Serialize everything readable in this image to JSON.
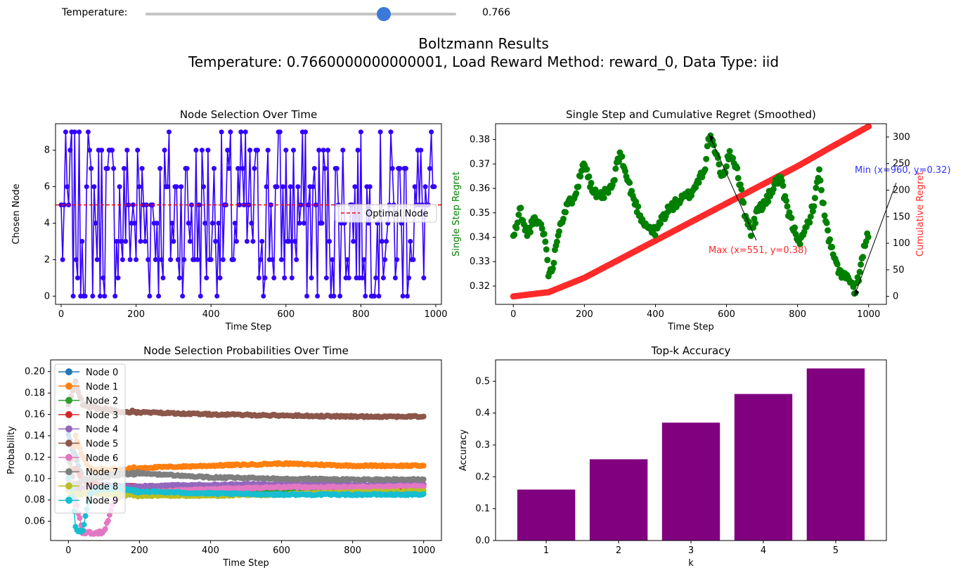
{
  "slider": {
    "label": "Temperature:",
    "value": 0.766,
    "value_text": "0.766",
    "min": 0,
    "max": 1
  },
  "figure": {
    "title_line1": "Boltzmann Results",
    "title_line2": "Temperature: 0.7660000000000001, Load Reward Method: reward_0, Data Type: iid"
  },
  "colors": {
    "selection": "#3300ff",
    "optimal": "#ff0000",
    "single_regret": "#008000",
    "cumulative_regret": "#ff2a2a",
    "bars": "#800080",
    "nodes": [
      "#1f77b4",
      "#ff7f0e",
      "#2ca02c",
      "#d62728",
      "#9467bd",
      "#8c564b",
      "#e377c2",
      "#7f7f7f",
      "#bcbd22",
      "#17becf"
    ]
  },
  "chart_data": [
    {
      "type": "line",
      "title": "Node Selection Over Time",
      "xlabel": "Time Step",
      "ylabel": "Chosen Node",
      "xlim": [
        -15,
        1015
      ],
      "ylim": [
        -0.45,
        9.45
      ],
      "xticks": [
        0,
        200,
        400,
        600,
        800,
        1000
      ],
      "yticks": [
        0,
        2,
        4,
        6,
        8
      ],
      "n_steps": 1000,
      "value_range": [
        0,
        9
      ],
      "optimal_node": 5,
      "series": [
        {
          "name": "Optimal Node",
          "values": [
            5,
            5
          ]
        }
      ],
      "legend_position": "center-right",
      "note": "Per-step chosen node values (0-9) over 1000 steps, too dense to read individually"
    },
    {
      "type": "line",
      "title": "Single Step and Cumulative Regret (Smoothed)",
      "xlabel": "Time Step",
      "ylabel": "Single Step Regret",
      "ylabel_right": "Cumulative Regret",
      "xlim": [
        -50,
        1050
      ],
      "ylim": [
        0.3125,
        0.3865
      ],
      "ylim_right": [
        -15,
        325
      ],
      "xticks": [
        0,
        200,
        400,
        600,
        800,
        1000
      ],
      "yticks": [
        0.32,
        0.33,
        0.34,
        0.35,
        0.36,
        0.37,
        0.38
      ],
      "yticks_right": [
        0,
        50,
        100,
        150,
        200,
        250,
        300
      ],
      "series": [
        {
          "name": "Single Step Regret",
          "x": [
            0,
            10,
            20,
            30,
            40,
            60,
            80,
            95,
            100,
            110,
            130,
            150,
            170,
            185,
            200,
            220,
            240,
            260,
            280,
            300,
            320,
            340,
            360,
            380,
            400,
            420,
            440,
            460,
            480,
            500,
            520,
            540,
            551,
            570,
            590,
            610,
            630,
            650,
            670,
            690,
            710,
            730,
            750,
            770,
            790,
            810,
            830,
            850,
            860,
            875,
            890,
            910,
            930,
            950,
            960,
            975,
            990,
            1000
          ],
          "values": [
            0.34,
            0.345,
            0.352,
            0.344,
            0.342,
            0.347,
            0.345,
            0.335,
            0.323,
            0.328,
            0.345,
            0.352,
            0.357,
            0.363,
            0.372,
            0.36,
            0.356,
            0.358,
            0.361,
            0.375,
            0.364,
            0.355,
            0.348,
            0.344,
            0.342,
            0.348,
            0.352,
            0.354,
            0.356,
            0.358,
            0.363,
            0.369,
            0.382,
            0.374,
            0.364,
            0.375,
            0.368,
            0.351,
            0.342,
            0.352,
            0.354,
            0.36,
            0.365,
            0.352,
            0.343,
            0.338,
            0.346,
            0.356,
            0.368,
            0.35,
            0.338,
            0.328,
            0.324,
            0.322,
            0.316,
            0.326,
            0.337,
            0.342
          ]
        },
        {
          "name": "Cumulative Regret",
          "x": [
            0,
            100,
            200,
            300,
            400,
            500,
            600,
            700,
            800,
            900,
            1000
          ],
          "values": [
            0,
            8,
            35,
            70,
            105,
            140,
            175,
            210,
            245,
            283,
            320
          ]
        }
      ],
      "annotations": [
        {
          "text": "Max (x=551, y=0.38)",
          "x": 551,
          "y": 0.382
        },
        {
          "text": "Min (x=960, y=0.32)",
          "x": 960,
          "y": 0.316
        }
      ]
    },
    {
      "type": "line",
      "title": "Node Selection Probabilities Over Time",
      "xlabel": "Time Step",
      "ylabel": "Probability",
      "xlim": [
        -50,
        1050
      ],
      "ylim": [
        0.042,
        0.211
      ],
      "xticks": [
        0,
        200,
        400,
        600,
        800,
        1000
      ],
      "yticks": [
        0.06,
        0.08,
        0.1,
        0.12,
        0.14,
        0.16,
        0.18,
        0.2
      ],
      "legend_position": "upper-left",
      "series": [
        {
          "name": "Node 0",
          "x": [
            0,
            20,
            40,
            60,
            100,
            150,
            200,
            400,
            600,
            800,
            1000
          ],
          "values": [
            0.14,
            0.12,
            0.1,
            0.095,
            0.093,
            0.092,
            0.091,
            0.092,
            0.093,
            0.093,
            0.094
          ]
        },
        {
          "name": "Node 1",
          "x": [
            0,
            20,
            40,
            60,
            100,
            150,
            200,
            400,
            600,
            800,
            1000
          ],
          "values": [
            0.09,
            0.14,
            0.12,
            0.11,
            0.108,
            0.108,
            0.11,
            0.112,
            0.114,
            0.112,
            0.112
          ]
        },
        {
          "name": "Node 2",
          "x": [
            0,
            20,
            40,
            60,
            100,
            150,
            200,
            400,
            600,
            800,
            1000
          ],
          "values": [
            0.08,
            0.085,
            0.09,
            0.09,
            0.088,
            0.087,
            0.085,
            0.086,
            0.088,
            0.089,
            0.089
          ]
        },
        {
          "name": "Node 3",
          "x": [
            0,
            20,
            40,
            60,
            100,
            150,
            200,
            400,
            600,
            800,
            1000
          ],
          "values": [
            0.1,
            0.11,
            0.1,
            0.095,
            0.093,
            0.092,
            0.092,
            0.093,
            0.093,
            0.092,
            0.092
          ]
        },
        {
          "name": "Node 4",
          "x": [
            0,
            20,
            40,
            60,
            100,
            150,
            200,
            400,
            600,
            800,
            1000
          ],
          "values": [
            0.09,
            0.095,
            0.09,
            0.09,
            0.091,
            0.092,
            0.093,
            0.094,
            0.095,
            0.094,
            0.094
          ]
        },
        {
          "name": "Node 5",
          "x": [
            0,
            20,
            40,
            60,
            100,
            150,
            200,
            400,
            600,
            800,
            1000
          ],
          "values": [
            0.17,
            0.19,
            0.17,
            0.167,
            0.165,
            0.163,
            0.162,
            0.16,
            0.159,
            0.158,
            0.158
          ]
        },
        {
          "name": "Node 6",
          "x": [
            0,
            20,
            40,
            60,
            80,
            100,
            130,
            150,
            200,
            400,
            600,
            800,
            1000
          ],
          "values": [
            0.1,
            0.08,
            0.05,
            0.049,
            0.049,
            0.05,
            0.08,
            0.085,
            0.087,
            0.09,
            0.092,
            0.092,
            0.093
          ]
        },
        {
          "name": "Node 7",
          "x": [
            0,
            20,
            40,
            60,
            100,
            150,
            200,
            400,
            600,
            800,
            1000
          ],
          "values": [
            0.12,
            0.09,
            0.1,
            0.1,
            0.102,
            0.104,
            0.105,
            0.101,
            0.1,
            0.099,
            0.099
          ]
        },
        {
          "name": "Node 8",
          "x": [
            0,
            20,
            40,
            60,
            100,
            150,
            200,
            400,
            600,
            800,
            1000
          ],
          "values": [
            0.09,
            0.085,
            0.086,
            0.087,
            0.086,
            0.085,
            0.084,
            0.084,
            0.085,
            0.087,
            0.088
          ]
        },
        {
          "name": "Node 9",
          "x": [
            0,
            10,
            20,
            30,
            40,
            60,
            80,
            100,
            150,
            200,
            400,
            600,
            800,
            1000
          ],
          "values": [
            0.1,
            0.09,
            0.055,
            0.05,
            0.05,
            0.085,
            0.09,
            0.091,
            0.09,
            0.088,
            0.086,
            0.085,
            0.085,
            0.085
          ]
        }
      ]
    },
    {
      "type": "bar",
      "title": "Top-k Accuracy",
      "xlabel": "k",
      "ylabel": "Accuracy",
      "categories": [
        "1",
        "2",
        "3",
        "4",
        "5"
      ],
      "values": [
        0.16,
        0.255,
        0.37,
        0.46,
        0.54
      ],
      "ylim": [
        0,
        0.567
      ],
      "yticks": [
        0.0,
        0.1,
        0.2,
        0.3,
        0.4,
        0.5
      ]
    }
  ]
}
